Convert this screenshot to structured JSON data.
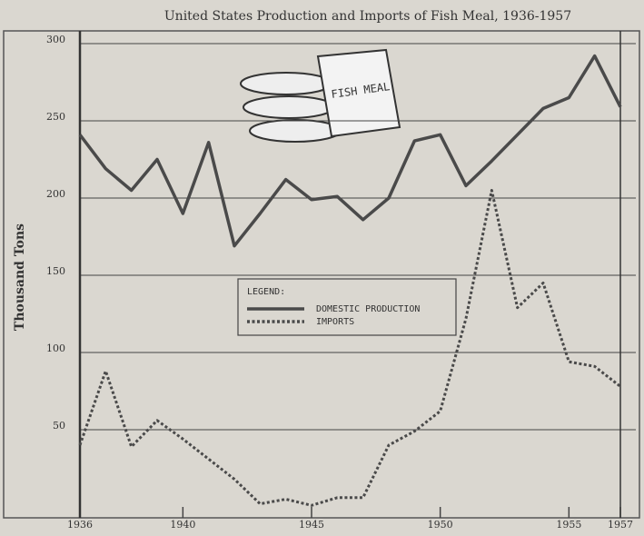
{
  "chart_data": {
    "type": "line",
    "title": "United States Production and Imports of Fish Meal, 1936-1957",
    "y_label": "Thousand Tons",
    "legend_title": "LEGEND:",
    "illustration_text": "FISH MEAL",
    "x": [
      1936,
      1937,
      1938,
      1939,
      1940,
      1941,
      1942,
      1943,
      1944,
      1945,
      1946,
      1947,
      1948,
      1949,
      1950,
      1951,
      1952,
      1953,
      1954,
      1955,
      1956,
      1957
    ],
    "series": [
      {
        "name": "DOMESTIC PRODUCTION",
        "color": "#4a4a4a",
        "style": "solid",
        "values": [
          241,
          219,
          205,
          225,
          190,
          236,
          169,
          190,
          212,
          199,
          201,
          186,
          200,
          237,
          241,
          208,
          224,
          241,
          258,
          265,
          292,
          259
        ]
      },
      {
        "name": "IMPORTS",
        "color": "#4a4a4a",
        "style": "dotted",
        "values": [
          40,
          88,
          39,
          56,
          44,
          31,
          18,
          2,
          5,
          1,
          6,
          6,
          40,
          49,
          62,
          122,
          205,
          129,
          145,
          94,
          91,
          78
        ]
      }
    ],
    "xlim": [
      1936,
      1957
    ],
    "xticks": [
      1936,
      1940,
      1945,
      1950,
      1955,
      1957
    ],
    "ylim": [
      0,
      300
    ],
    "yticks": [
      50,
      100,
      150,
      200,
      250,
      300
    ],
    "grid": true
  }
}
